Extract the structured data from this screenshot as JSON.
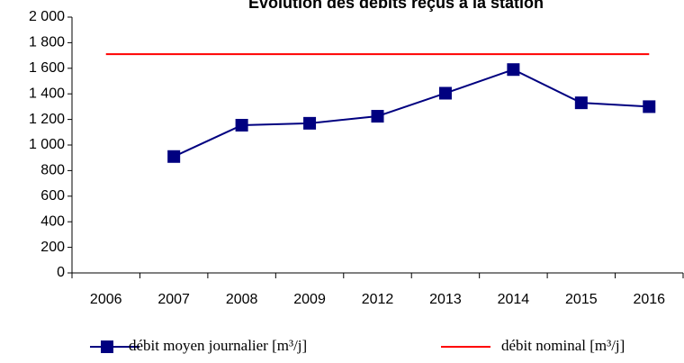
{
  "chart_data": {
    "type": "line",
    "title": "Evolution des débits reçus à la station",
    "categories": [
      "2006",
      "2007",
      "2008",
      "2009",
      "2012",
      "2013",
      "2014",
      "2015",
      "2016"
    ],
    "series": [
      {
        "name": "débit moyen journalier [m³/j]",
        "color": "#000080",
        "marker": "square",
        "values": [
          null,
          910,
          1155,
          1170,
          1225,
          1405,
          1590,
          1330,
          1300
        ]
      },
      {
        "name": "débit nominal [m³/j]",
        "color": "#ff0000",
        "values": [
          1710,
          1710,
          1710,
          1710,
          1710,
          1710,
          1710,
          1710,
          1710
        ]
      }
    ],
    "ylim": [
      0,
      2000
    ],
    "yticks": [
      0,
      200,
      400,
      600,
      800,
      {
        "value": 1000,
        "label": "1 000"
      },
      {
        "value": 1200,
        "label": "1 200"
      },
      {
        "value": 1400,
        "label": "1 400"
      },
      {
        "value": 1600,
        "label": "1 600"
      },
      {
        "value": 1800,
        "label": "1 800"
      },
      {
        "value": 2000,
        "label": "2 000"
      }
    ],
    "grid": false,
    "legend": "bottom"
  }
}
